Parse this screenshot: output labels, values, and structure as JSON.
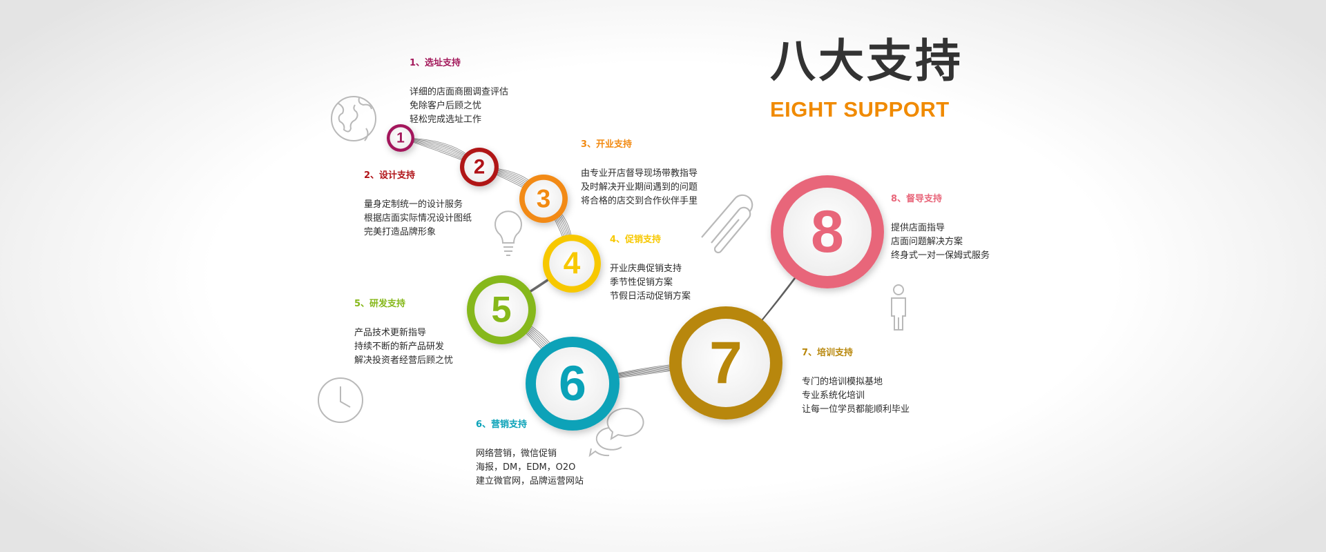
{
  "header": {
    "title": "八大支持",
    "subtitle": "EIGHT SUPPORT",
    "subtitle_color": "#f08a00"
  },
  "supports": [
    {
      "number": "1",
      "color": "#a3195b",
      "title": "1、选址支持",
      "lines": [
        "详细的店面商圈调查评估",
        "免除客户后顾之忧",
        "轻松完成选址工作"
      ]
    },
    {
      "number": "2",
      "color": "#b01217",
      "title": "2、设计支持",
      "lines": [
        "量身定制统一的设计服务",
        "根据店面实际情况设计图纸",
        "完美打造品牌形象"
      ]
    },
    {
      "number": "3",
      "color": "#f28a12",
      "title": "3、开业支持",
      "lines": [
        "由专业开店督导现场带教指导",
        "及时解决开业期间遇到的问题",
        "将合格的店交到合作伙伴手里"
      ]
    },
    {
      "number": "4",
      "color": "#f7c800",
      "title": "4、促销支持",
      "lines": [
        "开业庆典促销支持",
        "季节性促销方案",
        "节假日活动促销方案"
      ]
    },
    {
      "number": "5",
      "color": "#86b81a",
      "title": "5、研发支持",
      "lines": [
        "产品技术更新指导",
        "持续不断的新产品研发",
        "解决投资者经营后顾之忧"
      ]
    },
    {
      "number": "6",
      "color": "#0aa2b8",
      "title": "6、营销支持",
      "lines": [
        "网络营销，微信促销",
        "海报，DM，EDM，O2O",
        "建立微官网，品牌运营网站"
      ]
    },
    {
      "number": "7",
      "color": "#b8870b",
      "title": "7、培训支持",
      "lines": [
        "专门的培训模拟基地",
        "专业系统化培训",
        "让每一位学员都能顺利毕业"
      ]
    },
    {
      "number": "8",
      "color": "#e8667a",
      "title": "8、督导支持",
      "lines": [
        "提供店面指导",
        "店面问题解决方案",
        "终身式一对一保姆式服务"
      ]
    }
  ],
  "icons": [
    "globe-icon",
    "lightbulb-icon",
    "clock-icon",
    "chat-bubbles-icon",
    "paperclip-icon",
    "person-icon"
  ],
  "line_color": "#555555"
}
